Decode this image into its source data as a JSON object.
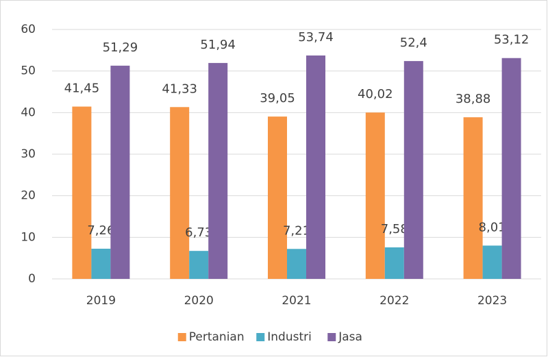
{
  "chart_data": {
    "type": "bar",
    "categories": [
      "2019",
      "2020",
      "2021",
      "2022",
      "2023"
    ],
    "series": [
      {
        "name": "Pertanian",
        "color": "#f79646",
        "values": [
          41.45,
          41.33,
          39.05,
          40.02,
          38.88
        ],
        "value_labels": [
          "41,45",
          "41,33",
          "39,05",
          "40,02",
          "38,88"
        ]
      },
      {
        "name": "Industri",
        "color": "#4bacc6",
        "values": [
          7.26,
          6.73,
          7.21,
          7.58,
          8.01
        ],
        "value_labels": [
          "7,26",
          "6,73",
          "7,21",
          "7,58",
          "8,01"
        ]
      },
      {
        "name": "Jasa",
        "color": "#8064a2",
        "values": [
          51.29,
          51.94,
          53.74,
          52.4,
          53.12
        ],
        "value_labels": [
          "51,29",
          "51,94",
          "53,74",
          "52,4",
          "53,12"
        ]
      }
    ],
    "ylim": [
      0,
      60
    ],
    "yticks": [
      0,
      10,
      20,
      30,
      40,
      50,
      60
    ],
    "grid": true,
    "legend": "bottom"
  }
}
